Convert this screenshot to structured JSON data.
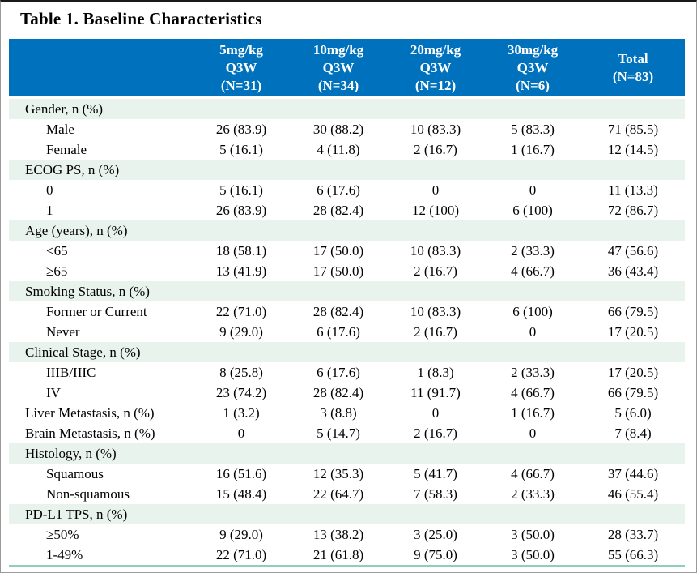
{
  "title": "Table 1. Baseline Characteristics",
  "colors": {
    "header_bg": "#0071BC",
    "section_bg": "#E9F3EE",
    "bottom_border": "#8FCFB8",
    "header_text": "#FFFFFF",
    "body_text": "#000000"
  },
  "table": {
    "columns": [
      {
        "id": "dose-5mgkg",
        "lines": [
          "5mg/kg",
          "Q3W",
          "(N=31)"
        ]
      },
      {
        "id": "dose-10mgkg",
        "lines": [
          "10mg/kg",
          "Q3W",
          "(N=34)"
        ]
      },
      {
        "id": "dose-20mgkg",
        "lines": [
          "20mg/kg",
          "Q3W",
          "(N=12)"
        ]
      },
      {
        "id": "dose-30mgkg",
        "lines": [
          "30mg/kg",
          "Q3W",
          "(N=6)"
        ]
      },
      {
        "id": "total",
        "lines": [
          "Total",
          "(N=83)"
        ]
      }
    ],
    "rows": [
      {
        "type": "section",
        "label": "Gender, n (%)",
        "values": [
          "",
          "",
          "",
          "",
          ""
        ]
      },
      {
        "type": "sub",
        "label": "Male",
        "values": [
          "26 (83.9)",
          "30 (88.2)",
          "10 (83.3)",
          "5 (83.3)",
          "71 (85.5)"
        ]
      },
      {
        "type": "sub",
        "label": "Female",
        "values": [
          "5 (16.1)",
          "4 (11.8)",
          "2 (16.7)",
          "1 (16.7)",
          "12 (14.5)"
        ]
      },
      {
        "type": "section",
        "label": "ECOG PS, n (%)",
        "values": [
          "",
          "",
          "",
          "",
          ""
        ]
      },
      {
        "type": "sub",
        "label": "0",
        "values": [
          "5 (16.1)",
          "6 (17.6)",
          "0",
          "0",
          "11 (13.3)"
        ]
      },
      {
        "type": "sub",
        "label": "1",
        "values": [
          "26 (83.9)",
          "28 (82.4)",
          "12 (100)",
          "6 (100)",
          "72 (86.7)"
        ]
      },
      {
        "type": "section",
        "label": "Age (years), n (%)",
        "values": [
          "",
          "",
          "",
          "",
          ""
        ]
      },
      {
        "type": "sub",
        "label": "<65",
        "values": [
          "18 (58.1)",
          "17 (50.0)",
          "10 (83.3)",
          "2 (33.3)",
          "47 (56.6)"
        ]
      },
      {
        "type": "sub",
        "label": "≥65",
        "values": [
          "13 (41.9)",
          "17 (50.0)",
          "2 (16.7)",
          "4 (66.7)",
          "36 (43.4)"
        ]
      },
      {
        "type": "section",
        "label": "Smoking Status, n (%)",
        "values": [
          "",
          "",
          "",
          "",
          ""
        ]
      },
      {
        "type": "sub",
        "label": "Former or Current",
        "values": [
          "22 (71.0)",
          "28 (82.4)",
          "10 (83.3)",
          "6 (100)",
          "66 (79.5)"
        ]
      },
      {
        "type": "sub",
        "label": "Never",
        "values": [
          "9 (29.0)",
          "6 (17.6)",
          "2 (16.7)",
          "0",
          "17 (20.5)"
        ]
      },
      {
        "type": "section",
        "label": "Clinical Stage, n (%)",
        "values": [
          "",
          "",
          "",
          "",
          ""
        ]
      },
      {
        "type": "sub",
        "label": "IIIB/IIIC",
        "values": [
          "8 (25.8)",
          "6 (17.6)",
          "1 (8.3)",
          "2 (33.3)",
          "17 (20.5)"
        ]
      },
      {
        "type": "sub",
        "label": "IV",
        "values": [
          "23 (74.2)",
          "28 (82.4)",
          "11 (91.7)",
          "4 (66.7)",
          "66 (79.5)"
        ]
      },
      {
        "type": "flat",
        "label": "Liver Metastasis, n (%)",
        "values": [
          "1 (3.2)",
          "3 (8.8)",
          "0",
          "1 (16.7)",
          "5 (6.0)"
        ]
      },
      {
        "type": "flat",
        "label": "Brain Metastasis, n (%)",
        "values": [
          "0",
          "5 (14.7)",
          "2 (16.7)",
          "0",
          "7 (8.4)"
        ]
      },
      {
        "type": "section",
        "label": "Histology, n (%)",
        "values": [
          "",
          "",
          "",
          "",
          ""
        ]
      },
      {
        "type": "sub",
        "label": "Squamous",
        "values": [
          "16 (51.6)",
          "12 (35.3)",
          "5 (41.7)",
          "4 (66.7)",
          "37 (44.6)"
        ]
      },
      {
        "type": "sub",
        "label": "Non-squamous",
        "values": [
          "15 (48.4)",
          "22 (64.7)",
          "7 (58.3)",
          "2 (33.3)",
          "46 (55.4)"
        ]
      },
      {
        "type": "section",
        "label": "PD-L1 TPS, n (%)",
        "values": [
          "",
          "",
          "",
          "",
          ""
        ]
      },
      {
        "type": "sub",
        "label": "≥50%",
        "values": [
          "9 (29.0)",
          "13 (38.2)",
          "3 (25.0)",
          "3 (50.0)",
          "28 (33.7)"
        ]
      },
      {
        "type": "sub",
        "label": "1-49%",
        "values": [
          "22 (71.0)",
          "21 (61.8)",
          "9 (75.0)",
          "3 (50.0)",
          "55 (66.3)"
        ]
      }
    ]
  }
}
